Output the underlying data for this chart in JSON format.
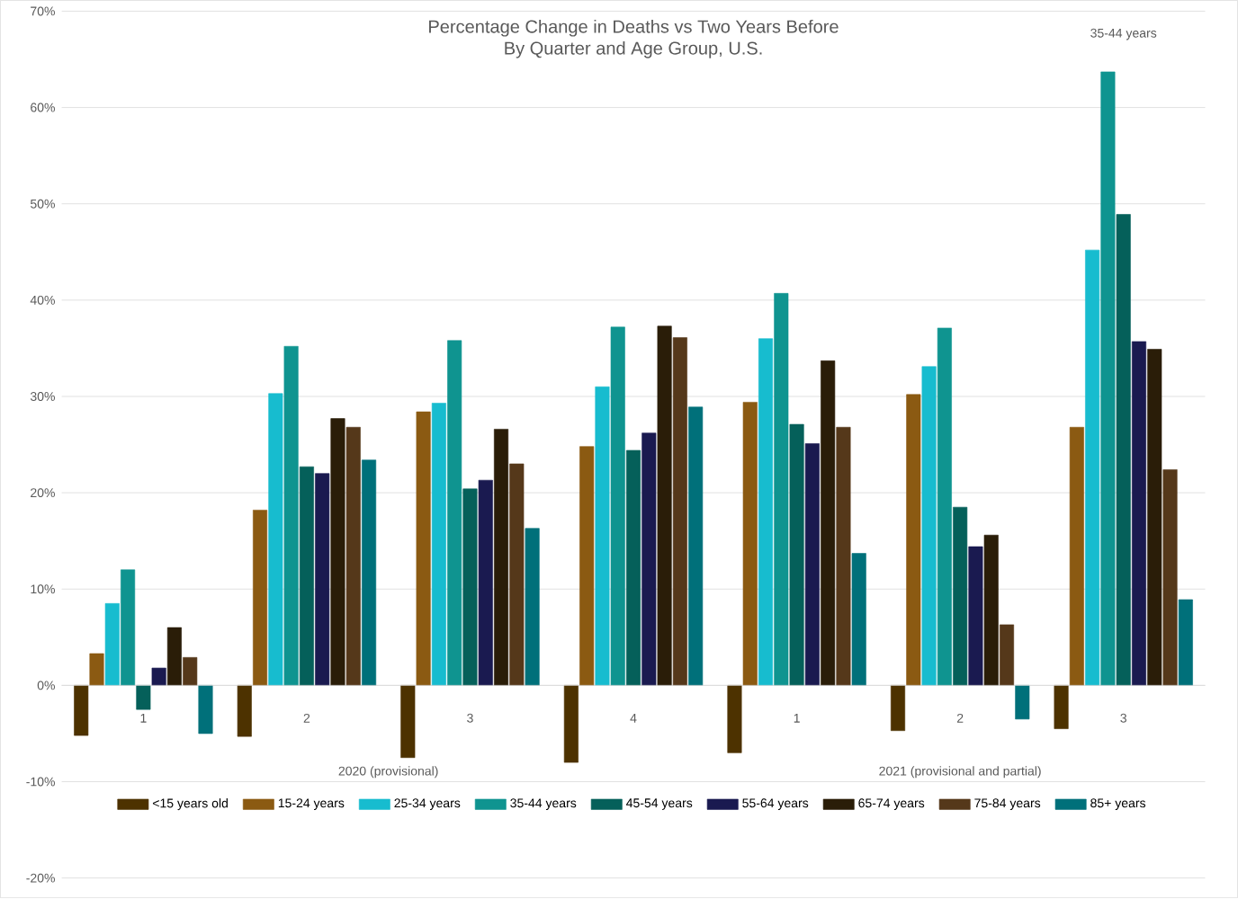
{
  "chart_data": {
    "type": "bar",
    "title": "Percentage Change in Deaths vs Two Years Before",
    "subtitle": "By Quarter and Age Group, U.S.",
    "categories": [
      "1",
      "2",
      "3",
      "4",
      "1",
      "2",
      "3"
    ],
    "series": [
      {
        "name": "<15 years old",
        "color": "#4d3200",
        "values": [
          -5.2,
          -5.3,
          -7.5,
          -8.0,
          -7.0,
          -4.7,
          -4.5
        ]
      },
      {
        "name": "15-24 years",
        "color": "#8b5a12",
        "values": [
          3.3,
          18.2,
          28.4,
          24.8,
          29.4,
          30.2,
          26.8
        ]
      },
      {
        "name": "25-34 years",
        "color": "#17bccf",
        "values": [
          8.5,
          30.3,
          29.3,
          31.0,
          36.0,
          33.1,
          45.2
        ]
      },
      {
        "name": "35-44 years",
        "color": "#0f9490",
        "values": [
          12.0,
          35.2,
          35.8,
          37.2,
          40.7,
          37.1,
          63.7
        ]
      },
      {
        "name": "45-54 years",
        "color": "#05605a",
        "values": [
          -2.5,
          22.7,
          20.4,
          24.4,
          27.1,
          18.5,
          48.9
        ]
      },
      {
        "name": "55-64 years",
        "color": "#1a1a50",
        "values": [
          1.8,
          22.0,
          21.3,
          26.2,
          25.1,
          14.4,
          35.7
        ]
      },
      {
        "name": "65-74 years",
        "color": "#2a1d08",
        "values": [
          6.0,
          27.7,
          26.6,
          37.3,
          33.7,
          15.6,
          34.9
        ]
      },
      {
        "name": "75-84 years",
        "color": "#55381a",
        "values": [
          2.9,
          26.8,
          23.0,
          36.1,
          26.8,
          6.3,
          22.4
        ]
      },
      {
        "name": "85+ years",
        "color": "#00707a",
        "values": [
          -5.0,
          23.4,
          16.3,
          28.9,
          13.7,
          -3.5,
          8.9
        ]
      }
    ],
    "ylim": [
      -20,
      70
    ],
    "yticks": [
      {
        "value": -20,
        "label": "-20%"
      },
      {
        "value": -10,
        "label": "-10%"
      },
      {
        "value": 0,
        "label": "0%"
      },
      {
        "value": 10,
        "label": "10%"
      },
      {
        "value": 20,
        "label": "20%"
      },
      {
        "value": 30,
        "label": "30%"
      },
      {
        "value": 40,
        "label": "40%"
      },
      {
        "value": 50,
        "label": "50%"
      },
      {
        "value": 60,
        "label": "60%"
      },
      {
        "value": 70,
        "label": "70%"
      }
    ],
    "grid": "y",
    "legend": "bottom",
    "annotations": [
      "2020 (provisional)",
      "2021 (provisional and partial)",
      "35-44 years"
    ]
  }
}
